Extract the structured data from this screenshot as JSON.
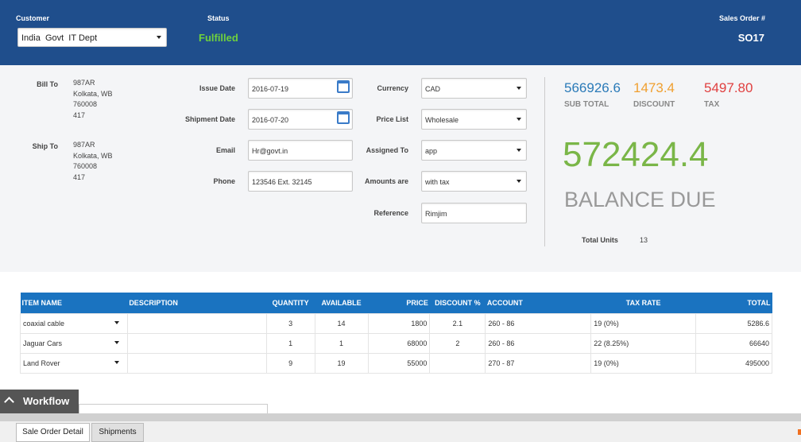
{
  "header": {
    "customer_label": "Customer",
    "customer_value": "India  Govt  IT Dept",
    "status_label": "Status",
    "status_value": "Fulfilled",
    "so_label": "Sales Order #",
    "so_value": "SO17"
  },
  "address": {
    "bill_to_label": "Bill To",
    "bill_to_lines": [
      "987AR",
      "Kolkata, WB",
      "760008",
      "417"
    ],
    "ship_to_label": "Ship To",
    "ship_to_lines": [
      "987AR",
      "Kolkata, WB",
      "760008",
      "417"
    ]
  },
  "fields_left": [
    {
      "label": "Issue Date",
      "value": "2016-07-19"
    },
    {
      "label": "Shipment Date",
      "value": "2016-07-20"
    },
    {
      "label": "Email",
      "value": "Hr@govt.in"
    },
    {
      "label": "Phone",
      "value": "123546 Ext. 32145"
    }
  ],
  "fields_right": [
    {
      "label": "Currency",
      "value": "CAD"
    },
    {
      "label": "Price List",
      "value": "Wholesale"
    },
    {
      "label": "Assigned To",
      "value": "app"
    },
    {
      "label": "Amounts are",
      "value": "with tax"
    },
    {
      "label": "Reference",
      "value": "Rimjim"
    }
  ],
  "summary": {
    "subtotal": "566926.6",
    "subtotal_label": "SUB TOTAL",
    "discount": "1473.4",
    "discount_label": "DISCOUNT",
    "tax": "5497.80",
    "tax_label": "TAX",
    "balance": "572424.4",
    "balance_label": "BALANCE DUE",
    "total_units_label": "Total Units",
    "total_units": "13"
  },
  "table": {
    "headers": [
      "ITEM NAME",
      "DESCRIPTION",
      "QUANTITY",
      "AVAILABLE",
      "PRICE",
      "DISCOUNT %",
      "ACCOUNT",
      "TAX RATE",
      "TOTAL"
    ],
    "rows": [
      {
        "item": "coaxial cable",
        "quantity": "3",
        "available": "14",
        "price": "1800",
        "discount": "2.1",
        "account": "260 - 86",
        "tax_rate": "19 (0%)",
        "total": "5286.6"
      },
      {
        "item": "Jaguar Cars",
        "quantity": "1",
        "available": "1",
        "price": "68000",
        "discount": "2",
        "account": "260 - 86",
        "tax_rate": "22 (8.25%)",
        "total": "66640"
      },
      {
        "item": "Land Rover",
        "quantity": "9",
        "available": "19",
        "price": "55000",
        "account": "270 - 87",
        "tax_rate": "19 (0%)",
        "total": "495000"
      }
    ]
  },
  "workflow": "Workflow",
  "tabs": [
    "Sale Order Detail",
    "Shipments"
  ]
}
